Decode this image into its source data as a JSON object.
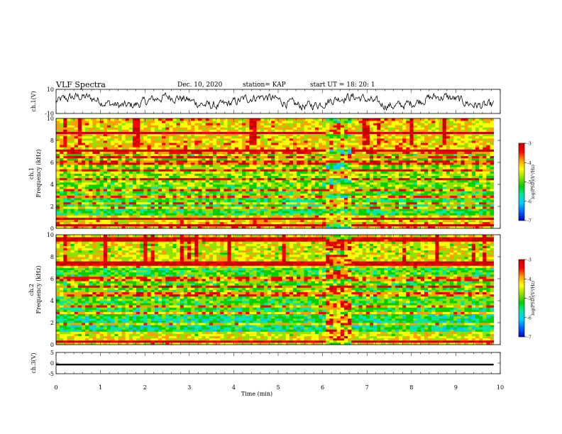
{
  "header": {
    "title": "VLF Spectra",
    "date": "Dec. 10, 2020",
    "station": "station= KAP",
    "start": "start  UT =   18: 20: 1"
  },
  "colors": {
    "palette": [
      "#0000c8",
      "#0060ff",
      "#00c8ff",
      "#00e8a0",
      "#00d000",
      "#90e000",
      "#ffff00",
      "#ffa000",
      "#ff0000",
      "#c80000"
    ]
  },
  "chart_data": {
    "type": "heatmap",
    "time_axis": {
      "label": "Time  (min)",
      "range": [
        0,
        10
      ],
      "ticks": [
        "0",
        "1",
        "2",
        "3",
        "4",
        "5",
        "6",
        "7",
        "8",
        "9",
        "10"
      ]
    },
    "panels": [
      {
        "kind": "line",
        "ylabel": "ch.1(V)",
        "ylim": [
          -10,
          10
        ],
        "yticks": [
          "10",
          "-10"
        ],
        "waveform_range": [
          -8,
          8
        ]
      },
      {
        "kind": "spectrogram",
        "ylabel": "ch.1\nFrequency (kHz)",
        "ylabel_lines": [
          "ch.1",
          "Frequency (kHz)"
        ],
        "ylim": [
          0,
          10
        ],
        "yticks": [
          "0",
          "2",
          "4",
          "6",
          "8",
          "10"
        ],
        "colorbar": {
          "label": "log(PSD)(V²/Hz)",
          "range": [
            -7,
            -3
          ],
          "ticks": [
            "-3",
            "-4",
            "-5",
            "-6",
            "-7"
          ]
        },
        "disturbance_time": [
          6.05,
          6.65
        ],
        "features": {
          "baseline_log_psd": -5,
          "strong_lines_khz": [
            0.3,
            0.9,
            1.9,
            2.3,
            2.9,
            3.5,
            4.5,
            5.3,
            6.0,
            6.5,
            7.0,
            8.7
          ],
          "burst_log_psd_range": [
            -5,
            -3.5
          ]
        }
      },
      {
        "kind": "spectrogram",
        "ylabel": "ch.2\nFrequency (kHz)",
        "ylabel_lines": [
          "ch.2",
          "Frequency (kHz)"
        ],
        "ylim": [
          0,
          10
        ],
        "yticks": [
          "0",
          "2",
          "4",
          "6",
          "8",
          "10"
        ],
        "colorbar": {
          "label": "log(PSD)(V²/Hz)",
          "range": [
            -7,
            -3
          ],
          "ticks": [
            "-3",
            "-4",
            "-5",
            "-6",
            "-7"
          ]
        },
        "disturbance_time": [
          6.05,
          6.65
        ],
        "features": {
          "baseline_log_psd": -5.2,
          "strong_lines_khz": [
            0.3,
            1.9,
            2.9,
            3.5,
            4.6,
            5.3,
            6.0,
            7.4,
            9.6
          ],
          "burst_log_psd_range": [
            -4.5,
            -3
          ]
        }
      },
      {
        "kind": "line",
        "ylabel": "ch.3(V)",
        "ylim": [
          -5,
          5
        ],
        "yticks": [
          "5",
          "0",
          "-5"
        ],
        "constant_value": -0.7,
        "band_value_range": [
          -1.1,
          -0.3
        ]
      }
    ]
  }
}
